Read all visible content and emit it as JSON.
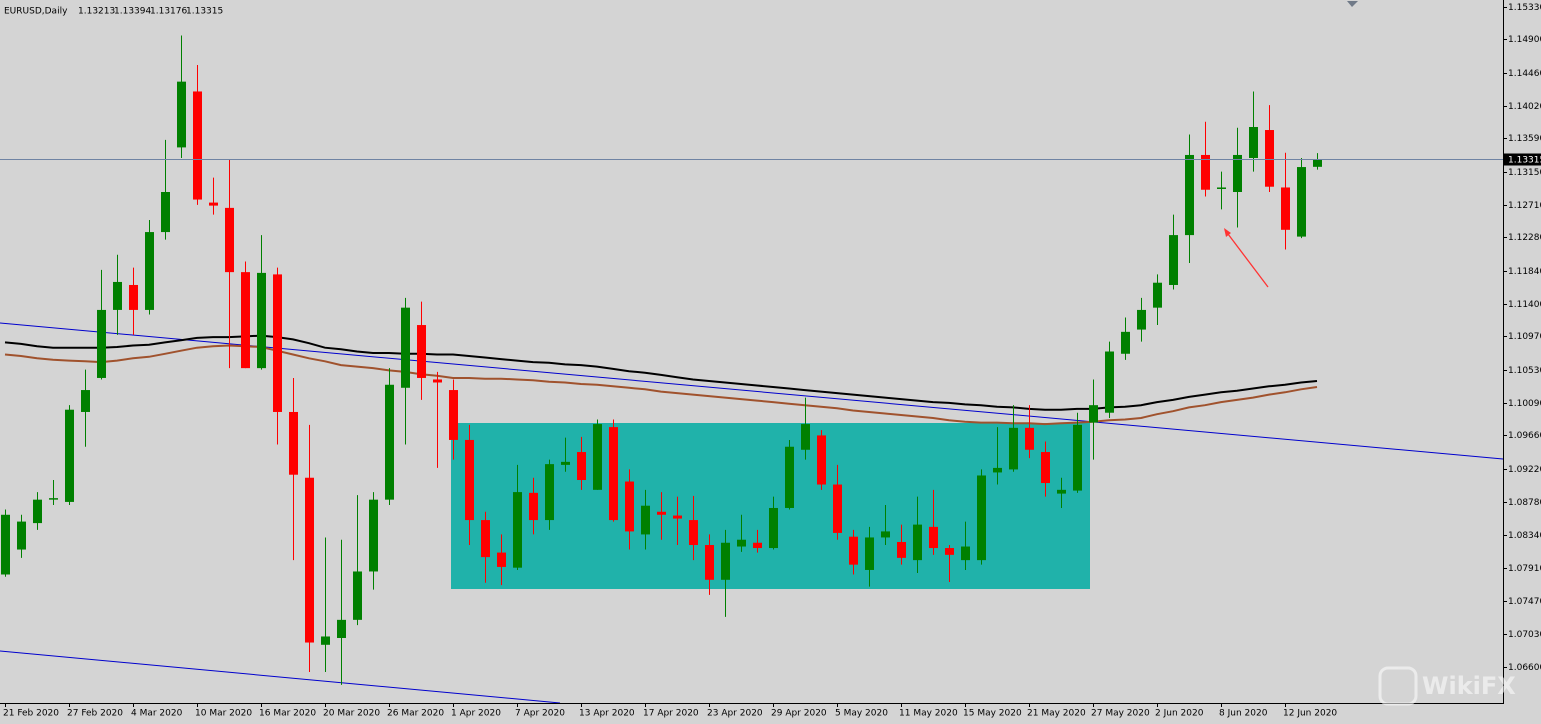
{
  "chart_data": {
    "type": "candlestick",
    "title": "EURUSD,Daily",
    "categories": [
      "21 Feb 2020",
      null,
      null,
      null,
      "27 Feb 2020",
      null,
      null,
      null,
      "4 Mar 2020",
      null,
      null,
      null,
      "10 Mar 2020",
      null,
      null,
      null,
      "16 Mar 2020",
      null,
      null,
      null,
      "20 Mar 2020",
      null,
      null,
      null,
      "26 Mar 2020",
      null,
      null,
      null,
      "1 Apr 2020",
      null,
      null,
      null,
      "7 Apr 2020",
      null,
      null,
      null,
      "13 Apr 2020",
      null,
      null,
      null,
      "17 Apr 2020",
      null,
      null,
      null,
      "23 Apr 2020",
      null,
      null,
      null,
      "29 Apr 2020",
      null,
      null,
      null,
      "5 May 2020",
      null,
      null,
      null,
      "11 May 2020",
      null,
      null,
      null,
      "15 May 2020",
      null,
      null,
      null,
      "21 May 2020",
      null,
      null,
      null,
      "27 May 2020",
      null,
      null,
      null,
      "2 Jun 2020",
      null,
      null,
      null,
      "8 Jun 2020",
      null,
      null,
      null,
      "12 Jun 2020",
      null,
      null
    ],
    "open": [
      1.0782,
      1.0815,
      1.085,
      1.0882,
      1.0878,
      1.0997,
      1.1042,
      1.1132,
      1.1165,
      1.1132,
      1.1235,
      1.1347,
      1.1421,
      1.1274,
      1.1267,
      1.1182,
      1.1055,
      1.1179,
      1.0997,
      1.091,
      1.0689,
      1.0698,
      1.0722,
      1.0786,
      1.0881,
      1.1029,
      1.1112,
      1.104,
      1.1026,
      1.096,
      1.0854,
      1.0811,
      1.0791,
      1.089,
      1.0854,
      1.0927,
      1.0944,
      1.0894,
      1.0977,
      1.0905,
      1.0835,
      1.0865,
      1.086,
      1.0854,
      1.0821,
      1.0775,
      1.0819,
      1.0824,
      1.0817,
      1.087,
      1.0947,
      1.0966,
      1.0901,
      1.0832,
      1.0788,
      1.0831,
      1.0825,
      1.0801,
      1.0845,
      1.0817,
      1.0801,
      1.0801,
      1.0917,
      1.0921,
      1.0976,
      1.0944,
      1.0889,
      1.0893,
      1.0983,
      1.0996,
      1.1074,
      1.1106,
      1.1135,
      1.1165,
      1.1231,
      1.1337,
      1.1292,
      1.1288,
      1.1333,
      1.137,
      1.1294,
      1.1229,
      1.13213
    ],
    "high": [
      1.0868,
      1.0861,
      1.0891,
      1.0907,
      1.1006,
      1.1053,
      1.1185,
      1.1205,
      1.1188,
      1.1251,
      1.1357,
      1.1495,
      1.1456,
      1.1307,
      1.1331,
      1.1196,
      1.1231,
      1.1188,
      1.1042,
      1.098,
      1.0831,
      1.0828,
      1.0887,
      1.0891,
      1.1055,
      1.1148,
      1.1143,
      1.105,
      1.104,
      1.098,
      1.0865,
      1.0835,
      1.0927,
      1.091,
      1.0934,
      1.0963,
      1.0964,
      1.0987,
      1.0987,
      1.0921,
      1.0894,
      1.0891,
      1.0885,
      1.0886,
      1.0835,
      1.0841,
      1.0861,
      1.0841,
      1.0885,
      1.096,
      1.1016,
      1.0973,
      1.0927,
      1.0841,
      1.0845,
      1.0874,
      1.0848,
      1.0885,
      1.0894,
      1.0821,
      1.0852,
      1.0921,
      1.0977,
      1.1006,
      1.1006,
      1.0958,
      1.091,
      1.0996,
      1.104,
      1.109,
      1.1122,
      1.1148,
      1.1179,
      1.1258,
      1.1364,
      1.1381,
      1.1315,
      1.1373,
      1.1421,
      1.1403,
      1.134,
      1.1333,
      1.13394
    ],
    "low": [
      1.0779,
      1.0804,
      1.0841,
      1.0874,
      1.0874,
      1.0951,
      1.104,
      1.1099,
      1.1099,
      1.1126,
      1.1225,
      1.1333,
      1.1271,
      1.1258,
      1.1055,
      1.1055,
      1.1053,
      1.0954,
      1.0801,
      1.0653,
      1.0653,
      1.0636,
      1.0715,
      1.0762,
      1.0874,
      1.0954,
      1.1013,
      1.0923,
      1.0934,
      1.0821,
      1.0771,
      1.0768,
      1.0788,
      1.0835,
      1.0841,
      1.0918,
      1.0894,
      1.0894,
      1.0852,
      1.0815,
      1.0815,
      1.0828,
      1.0821,
      1.0801,
      1.0755,
      1.0726,
      1.0812,
      1.0811,
      1.0815,
      1.0868,
      1.0934,
      1.0894,
      1.0828,
      1.0782,
      1.0766,
      1.0821,
      1.0795,
      1.0784,
      1.0808,
      1.0772,
      1.0788,
      1.0795,
      1.0901,
      1.0918,
      1.0936,
      1.0885,
      1.087,
      1.089,
      1.0934,
      1.0989,
      1.1066,
      1.109,
      1.1112,
      1.1159,
      1.1194,
      1.1282,
      1.1265,
      1.1241,
      1.1315,
      1.1288,
      1.1212,
      1.1227,
      1.13176
    ],
    "close": [
      1.0861,
      1.0852,
      1.0881,
      1.0883,
      1.1,
      1.1026,
      1.1132,
      1.1169,
      1.1132,
      1.1235,
      1.1288,
      1.1434,
      1.1278,
      1.127,
      1.1182,
      1.1055,
      1.1181,
      1.0997,
      1.0914,
      1.0692,
      1.07,
      1.0722,
      1.0786,
      1.0881,
      1.1033,
      1.1135,
      1.1042,
      1.1036,
      1.096,
      1.0854,
      1.0805,
      1.0792,
      1.0891,
      1.0854,
      1.0928,
      1.0931,
      1.0907,
      1.0981,
      1.0854,
      1.0839,
      1.0873,
      1.0861,
      1.0856,
      1.0821,
      1.0775,
      1.0824,
      1.0828,
      1.0817,
      1.087,
      1.0951,
      1.0981,
      1.0901,
      1.0837,
      1.0795,
      1.0831,
      1.0839,
      1.0804,
      1.0848,
      1.0817,
      1.0808,
      1.0819,
      1.0913,
      1.0923,
      1.0976,
      1.0947,
      1.0903,
      1.0894,
      1.098,
      1.1006,
      1.1077,
      1.1103,
      1.1132,
      1.1168,
      1.1231,
      1.1337,
      1.1291,
      1.1294,
      1.1337,
      1.1374,
      1.1295,
      1.1238,
      1.1321,
      1.13315
    ],
    "up_color": "#008000",
    "down_color": "#ff0000",
    "overlays": [
      {
        "color": "#000000",
        "values": [
          1.1089,
          1.1087,
          1.1084,
          1.1082,
          1.1082,
          1.1082,
          1.1082,
          1.1083,
          1.1085,
          1.1086,
          1.1089,
          1.1092,
          1.1095,
          1.1096,
          1.1096,
          1.1097,
          1.1098,
          1.1096,
          1.1093,
          1.1088,
          1.1082,
          1.108,
          1.1077,
          1.1075,
          1.1075,
          1.1074,
          1.1074,
          1.1073,
          1.1073,
          1.1071,
          1.1069,
          1.1067,
          1.1065,
          1.1063,
          1.1062,
          1.106,
          1.1059,
          1.1057,
          1.1054,
          1.1051,
          1.1049,
          1.1046,
          1.1043,
          1.104,
          1.1038,
          1.1036,
          1.1034,
          1.1032,
          1.103,
          1.1028,
          1.1026,
          1.1024,
          1.1022,
          1.102,
          1.1018,
          1.1016,
          1.1014,
          1.1012,
          1.101,
          1.1009,
          1.1007,
          1.1006,
          1.1004,
          1.1003,
          1.1001,
          1.1,
          1.1,
          1.1001,
          1.1001,
          1.1003,
          1.1004,
          1.1006,
          1.101,
          1.1013,
          1.1017,
          1.102,
          1.1023,
          1.1025,
          1.1028,
          1.1031,
          1.1033,
          1.1036,
          1.1038
        ]
      },
      {
        "color": "#a0522d",
        "values": [
          1.1073,
          1.1071,
          1.1068,
          1.1066,
          1.1065,
          1.1064,
          1.1063,
          1.1065,
          1.1068,
          1.107,
          1.1074,
          1.1078,
          1.1082,
          1.1084,
          1.1085,
          1.1084,
          1.1083,
          1.1078,
          1.1073,
          1.1068,
          1.1064,
          1.1059,
          1.1057,
          1.1055,
          1.1052,
          1.105,
          1.1047,
          1.1045,
          1.1042,
          1.1042,
          1.1041,
          1.1041,
          1.104,
          1.1039,
          1.1037,
          1.1036,
          1.1034,
          1.1033,
          1.1031,
          1.1029,
          1.1027,
          1.1024,
          1.1022,
          1.102,
          1.1018,
          1.1016,
          1.1014,
          1.1012,
          1.101,
          1.1008,
          1.1006,
          1.1004,
          1.1002,
          1.0999,
          1.0997,
          1.0995,
          1.0993,
          1.0991,
          1.0989,
          1.0986,
          1.0984,
          1.0983,
          1.0983,
          1.0982,
          1.0982,
          1.0981,
          1.0982,
          1.0983,
          1.0984,
          1.0986,
          1.0987,
          1.0989,
          1.0994,
          1.0998,
          1.1003,
          1.1006,
          1.101,
          1.1013,
          1.1016,
          1.102,
          1.1023,
          1.1027,
          1.103
        ]
      }
    ],
    "ylim": [
      1.0612,
      1.1542
    ],
    "yticks": [
      {
        "value": 1.1533,
        "label": "1.15330"
      },
      {
        "value": 1.149,
        "label": "1.14900"
      },
      {
        "value": 1.1446,
        "label": "1.14460"
      },
      {
        "value": 1.1402,
        "label": "1.14020"
      },
      {
        "value": 1.1359,
        "label": "1.13590"
      },
      {
        "value": 1.1315,
        "label": "1.13150"
      },
      {
        "value": 1.1271,
        "label": "1.12710"
      },
      {
        "value": 1.1228,
        "label": "1.12280"
      },
      {
        "value": 1.1184,
        "label": "1.11840"
      },
      {
        "value": 1.114,
        "label": "1.11400"
      },
      {
        "value": 1.1097,
        "label": "1.10970"
      },
      {
        "value": 1.1053,
        "label": "1.10530"
      },
      {
        "value": 1.1009,
        "label": "1.10090"
      },
      {
        "value": 1.0966,
        "label": "1.09660"
      },
      {
        "value": 1.0922,
        "label": "1.09220"
      },
      {
        "value": 1.0878,
        "label": "1.08780"
      },
      {
        "value": 1.0834,
        "label": "1.08340"
      },
      {
        "value": 1.0791,
        "label": "1.07910"
      },
      {
        "value": 1.0747,
        "label": "1.07470"
      },
      {
        "value": 1.0703,
        "label": "1.07030"
      },
      {
        "value": 1.066,
        "label": "1.06600"
      }
    ],
    "price_line_color": "#6f83a3",
    "grid": false,
    "watermark": "WikiFX"
  }
}
